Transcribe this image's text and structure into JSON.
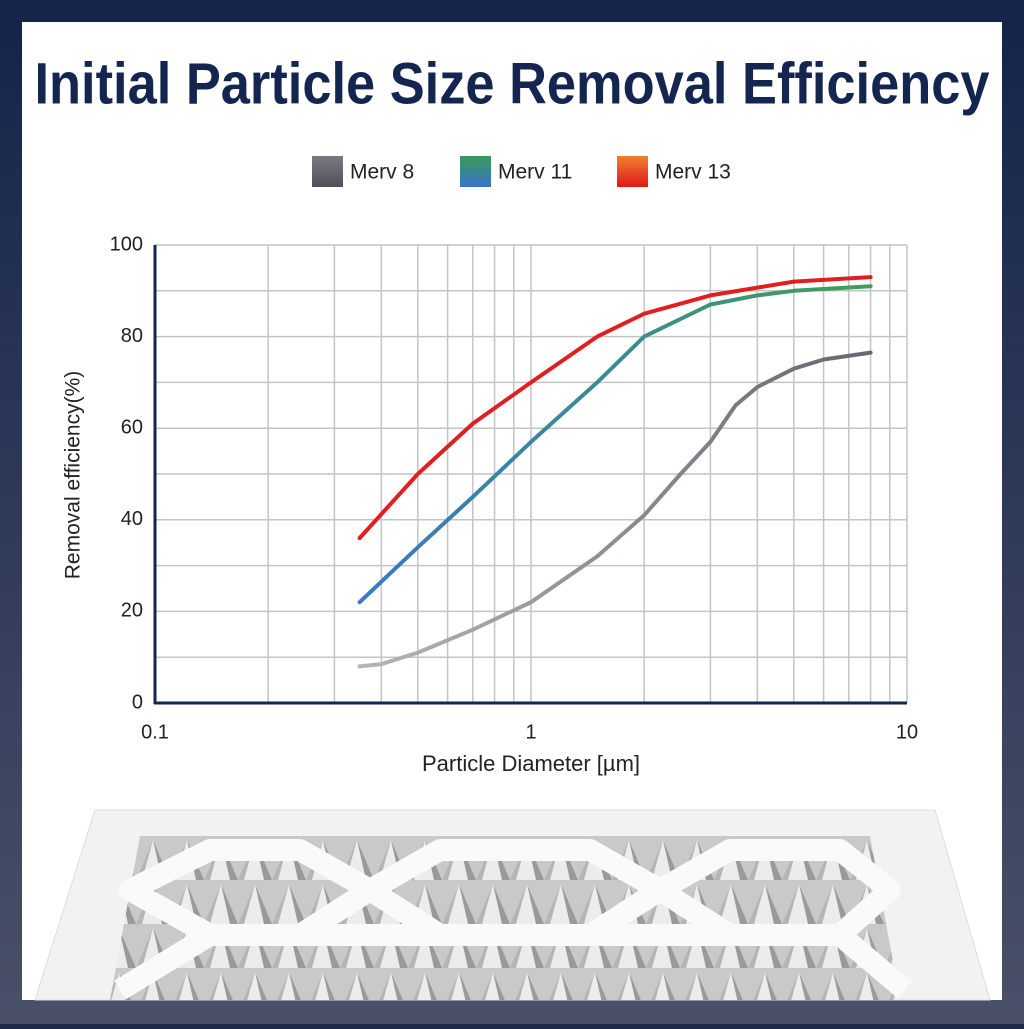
{
  "chart_data": {
    "type": "line",
    "title": "Initial Particle Size Removal Efficiency",
    "x_label": "Particle Diameter [µm]",
    "y_label": "Removal efficiency(%)",
    "xscale": "log",
    "xlim": [
      0.1,
      10
    ],
    "xticks": [
      0.1,
      1,
      10
    ],
    "xminor": [
      0.2,
      0.3,
      0.4,
      0.5,
      0.6,
      0.7,
      0.8,
      0.9,
      2,
      3,
      4,
      5,
      6,
      7,
      8,
      9
    ],
    "ylim": [
      0,
      100
    ],
    "yticks": [
      0,
      20,
      40,
      60,
      80,
      100
    ],
    "yminor": [
      10,
      30,
      50,
      70,
      90
    ],
    "grid": true,
    "legend": "top",
    "series": [
      {
        "name": "Merv 8",
        "colors": [
          "#b4b4bc",
          "#66666e"
        ],
        "legend_colors": [
          "#7a7a82",
          "#505058"
        ],
        "x": [
          0.35,
          0.4,
          0.5,
          0.7,
          1,
          1.5,
          2,
          2.5,
          3,
          3.5,
          4,
          5,
          6,
          8
        ],
        "values": [
          8,
          8.5,
          11,
          16,
          22,
          32,
          41,
          50,
          57,
          65,
          69,
          73,
          75,
          76.5
        ]
      },
      {
        "name": "Merv 11",
        "colors": [
          "#3a78c8",
          "#3ea055"
        ],
        "legend_colors": [
          "#3a9a55",
          "#3a72cc"
        ],
        "x": [
          0.35,
          0.5,
          0.7,
          1,
          1.5,
          2,
          3,
          4,
          5,
          8
        ],
        "values": [
          22,
          34,
          45,
          57,
          70,
          80,
          87,
          89,
          90,
          91
        ]
      },
      {
        "name": "Merv 13",
        "colors": [
          "#e02020",
          "#e02020"
        ],
        "legend_colors": [
          "#f08030",
          "#e01818"
        ],
        "x": [
          0.35,
          0.5,
          0.7,
          1,
          1.5,
          2,
          3,
          5,
          8
        ],
        "values": [
          36,
          50,
          61,
          70,
          80,
          85,
          89,
          92,
          93
        ]
      }
    ]
  }
}
